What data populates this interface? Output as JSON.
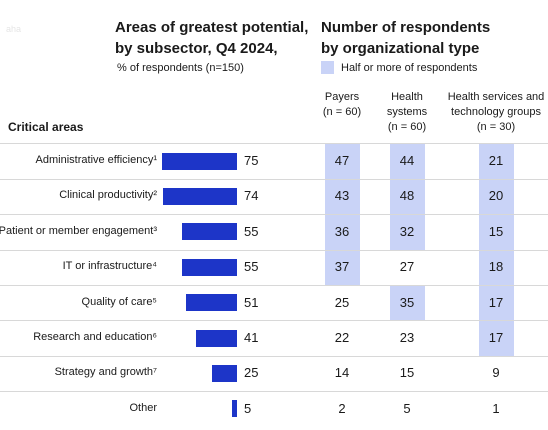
{
  "watermark": "aha",
  "left_header": {
    "title_line1": "Areas of greatest potential,",
    "title_line2": "by subsector, Q4 2024,",
    "subtitle": "% of respondents (n=150)"
  },
  "right_header": {
    "title_line1": "Number of respondents",
    "title_line2": "by organizational type",
    "legend_label": "Half or more of respondents"
  },
  "section_title": "Critical areas",
  "columns": [
    {
      "lines": [
        "Payers",
        "(n = 60)"
      ]
    },
    {
      "lines": [
        "Health",
        "systems",
        "(n = 60)"
      ]
    },
    {
      "lines": [
        "Health services and",
        "technology groups",
        "(n = 30)"
      ]
    }
  ],
  "colors": {
    "bar": "#1d35c8",
    "highlight": "#c9d3f7",
    "divider": "#d8d8d8"
  },
  "chart_data": {
    "type": "bar",
    "orientation": "horizontal",
    "categories": [
      "Administrative efficiency¹",
      "Clinical productivity²",
      "Patient or member engagement³",
      "IT or infrastructure⁴",
      "Quality of care⁵",
      "Research and education⁶",
      "Strategy and growth⁷",
      "Other"
    ],
    "values": [
      75,
      74,
      55,
      55,
      51,
      41,
      25,
      5
    ],
    "table": {
      "columns": [
        "Payers",
        "Health systems",
        "Health services and technology groups"
      ],
      "rows": [
        [
          47,
          44,
          21
        ],
        [
          43,
          48,
          20
        ],
        [
          36,
          32,
          15
        ],
        [
          37,
          27,
          18
        ],
        [
          25,
          35,
          17
        ],
        [
          22,
          23,
          17
        ],
        [
          14,
          15,
          9
        ],
        [
          2,
          5,
          1
        ]
      ],
      "highlighted": [
        [
          true,
          true,
          true
        ],
        [
          true,
          true,
          true
        ],
        [
          true,
          true,
          true
        ],
        [
          true,
          false,
          true
        ],
        [
          false,
          true,
          true
        ],
        [
          false,
          false,
          true
        ],
        [
          false,
          false,
          false
        ],
        [
          false,
          false,
          false
        ]
      ]
    }
  }
}
